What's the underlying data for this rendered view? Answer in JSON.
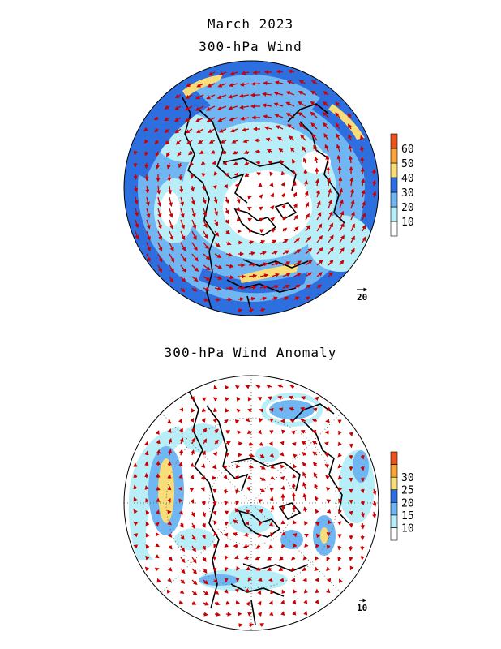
{
  "header": {
    "date": "March 2023",
    "panel1_title": "300-hPa Wind",
    "panel2_title": "300-hPa Wind Anomaly"
  },
  "panel1": {
    "colorbar": {
      "ticks": [
        "10",
        "20",
        "30",
        "40",
        "50",
        "60"
      ],
      "colors": [
        "#ffffff",
        "#b8eef8",
        "#6fb6f2",
        "#2e6fe0",
        "#f9dd78",
        "#f7a43a",
        "#e8551e"
      ]
    },
    "reference_vector": "20"
  },
  "panel2": {
    "colorbar": {
      "ticks": [
        "10",
        "15",
        "20",
        "25",
        "30"
      ],
      "colors": [
        "#ffffff",
        "#b8eef8",
        "#6fb6f2",
        "#2e6fe0",
        "#f9dd78",
        "#f7a43a",
        "#e8551e"
      ]
    },
    "reference_vector": "10"
  },
  "colors": {
    "vector": "#cc0000",
    "coast": "#000000"
  }
}
